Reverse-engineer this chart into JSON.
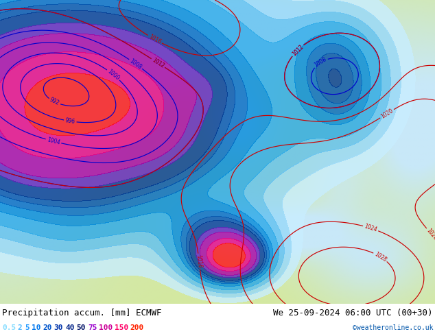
{
  "title_left": "Precipitation accum. [mm] ECMWF",
  "title_right": "We 25-09-2024 06:00 UTC (00+30)",
  "watermark": "©weatheronline.co.uk",
  "legend_values": [
    "0.5",
    "2",
    "5",
    "10",
    "20",
    "30",
    "40",
    "50",
    "75",
    "100",
    "150",
    "200"
  ],
  "legend_text_colors": [
    "#88ddff",
    "#55bbff",
    "#2299ff",
    "#0077ee",
    "#0055cc",
    "#0033aa",
    "#002288",
    "#001166",
    "#9900cc",
    "#cc0099",
    "#ff0066",
    "#ff2200"
  ],
  "land_color": "#d4e8a0",
  "sea_color": "#c8e8f8",
  "bg_color": "#ffffff",
  "precip_colors": [
    "#c8eeff",
    "#98d8f8",
    "#60c0f0",
    "#28a8e8",
    "#0088d8",
    "#0068c0",
    "#0050a8",
    "#003890",
    "#6020b8",
    "#a800a0",
    "#e80080",
    "#ff1010"
  ],
  "precip_levels": [
    0.5,
    2,
    5,
    10,
    20,
    30,
    40,
    50,
    75,
    100,
    150,
    200,
    500
  ],
  "isobar_blue_levels": [
    992,
    996,
    1000,
    1004,
    1008,
    1012
  ],
  "isobar_red_levels": [
    1012,
    1016,
    1020,
    1024,
    1028
  ],
  "isobar_blue_color": "#0000cc",
  "isobar_red_color": "#cc0000",
  "text_color": "#000000",
  "font_size_title": 9,
  "font_size_legend": 8,
  "fig_width": 6.34,
  "fig_height": 4.9,
  "dpi": 100
}
